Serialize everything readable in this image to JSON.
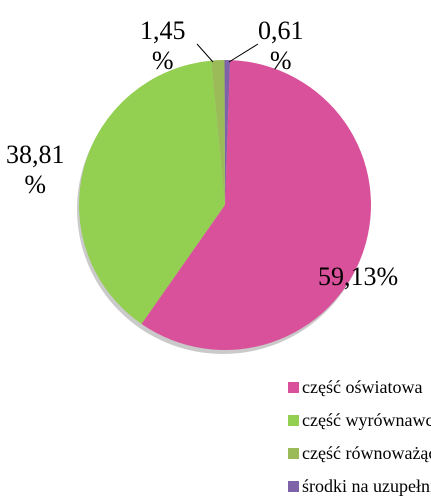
{
  "chart_data": {
    "type": "pie",
    "categories": [
      "część oświatowa",
      "część wyrównawcza",
      "część równoważąca",
      "środki na uzupełnienie dochodów gmin"
    ],
    "values": [
      59.13,
      38.81,
      1.45,
      0.61
    ],
    "value_labels": [
      "59,13%",
      "38,81\n%",
      "1,45\n%",
      "0,61\n%"
    ],
    "colors": [
      "#d9519a",
      "#93cf50",
      "#9bbb59",
      "#7f63a8"
    ]
  }
}
